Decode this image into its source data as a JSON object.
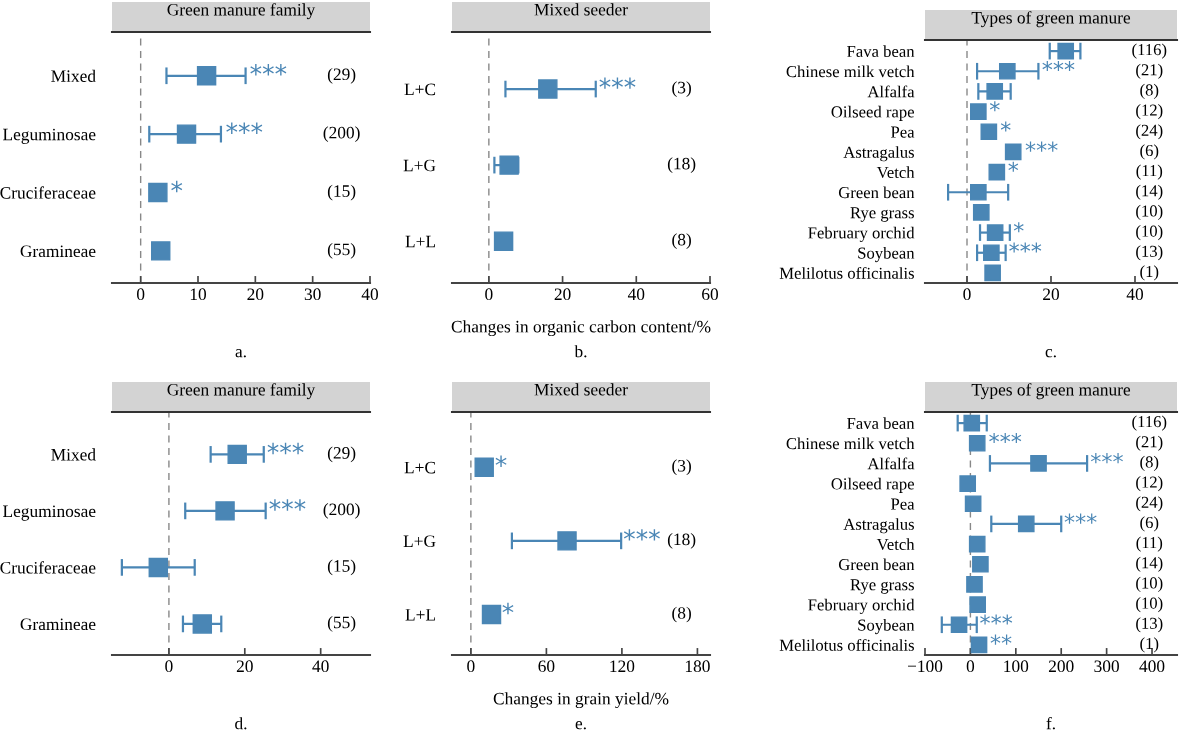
{
  "chart_data": [
    {
      "type": "scatter",
      "orientation": "horizontal",
      "marker": "square",
      "color": "#4a86b5",
      "title": "Green manure family",
      "categories": [
        "Mixed",
        "Leguminosae",
        "Cruciferaceae",
        "Gramineae"
      ],
      "values": [
        11.5,
        8,
        3,
        3.5
      ],
      "errors": [
        [
          4.5,
          18.3
        ],
        [
          1.5,
          14
        ],
        null,
        null
      ],
      "xlim": [
        -5,
        40
      ],
      "xticks": [
        0,
        10,
        20,
        30,
        40
      ],
      "ref_lines": [
        {
          "axis": "x",
          "value": 0,
          "line_style": "dashed",
          "color": "#888888"
        }
      ],
      "annotations": [
        {
          "text": "***",
          "x": 19,
          "y": "Mixed"
        },
        {
          "text": "***",
          "x": 14.8,
          "y": "Leguminosae"
        },
        {
          "text": "*",
          "x": 5.2,
          "y": "Cruciferaceae"
        },
        "(29)",
        "(200)",
        "(15)",
        "(55)",
        "a."
      ]
    },
    {
      "type": "scatter",
      "orientation": "horizontal",
      "marker": "square",
      "color": "#4a86b5",
      "title": "Mixed seeder",
      "xlabel": "Changes in organic carbon content/%",
      "categories": [
        "L+C",
        "L+G",
        "L+L"
      ],
      "values": [
        16,
        5.5,
        4
      ],
      "errors": [
        [
          4.5,
          29
        ],
        [
          1.5,
          8
        ],
        null
      ],
      "xlim": [
        -10,
        60
      ],
      "xticks": [
        0,
        20,
        40,
        60
      ],
      "ref_lines": [
        {
          "axis": "x",
          "value": 0,
          "line_style": "dashed",
          "color": "#888888"
        }
      ],
      "annotations": [
        {
          "text": "***",
          "x": 29.8,
          "y": "L+C"
        },
        "(3)",
        "(18)",
        "(8)",
        "b."
      ]
    },
    {
      "type": "scatter",
      "orientation": "horizontal",
      "marker": "square",
      "color": "#4a86b5",
      "title": "Types of green manure",
      "categories": [
        "Fava bean",
        "Chinese milk vetch",
        "Alfalfa",
        "Oilseed rape",
        "Pea",
        "Astragalus",
        "Vetch",
        "Green bean",
        "Rye grass",
        "February orchid",
        "Soybean",
        "Melilotus officinalis"
      ],
      "values": [
        23.5,
        9.6,
        6.6,
        2.7,
        5.2,
        11,
        7.1,
        2.7,
        3.4,
        6.7,
        5.8,
        6.1
      ],
      "errors": [
        [
          19.7,
          27
        ],
        [
          2.4,
          17
        ],
        [
          2.7,
          10.4
        ],
        null,
        null,
        null,
        null,
        [
          -4.5,
          9.8
        ],
        null,
        [
          3.1,
          10.2
        ],
        [
          2.4,
          9.2
        ],
        null
      ],
      "xlim": [
        -10,
        50
      ],
      "xticks": [
        0,
        20,
        40
      ],
      "ref_lines": [
        {
          "axis": "x",
          "value": 0,
          "line_style": "dashed",
          "color": "#888888"
        }
      ],
      "annotations": [
        {
          "text": "***",
          "x": 17.8,
          "y": "Chinese milk vetch"
        },
        {
          "text": "*",
          "x": 5.3,
          "y": "Oilseed rape"
        },
        {
          "text": "*",
          "x": 7.9,
          "y": "Pea"
        },
        {
          "text": "***",
          "x": 13.8,
          "y": "Astragalus"
        },
        {
          "text": "*",
          "x": 9.7,
          "y": "Vetch"
        },
        {
          "text": "*",
          "x": 11,
          "y": "February orchid"
        },
        {
          "text": "***",
          "x": 9.9,
          "y": "Soybean"
        },
        "(116)",
        "(21)",
        "(8)",
        "(12)",
        "(24)",
        "(6)",
        "(11)",
        "(14)",
        "(10)",
        "(10)",
        "(13)",
        "(1)",
        "c."
      ]
    },
    {
      "type": "scatter",
      "orientation": "horizontal",
      "marker": "square",
      "color": "#4a86b5",
      "title": "Green manure family",
      "categories": [
        "Mixed",
        "Leguminosae",
        "Cruciferaceae",
        "Gramineae"
      ],
      "values": [
        18,
        14.8,
        -2.8,
        8.8
      ],
      "errors": [
        [
          11,
          25
        ],
        [
          4.3,
          25.5
        ],
        [
          -12.4,
          6.8
        ],
        [
          3.7,
          13.8
        ]
      ],
      "xlim": [
        -15,
        53
      ],
      "xticks": [
        0,
        20,
        40
      ],
      "ref_lines": [
        {
          "axis": "x",
          "value": 0,
          "line_style": "dashed",
          "color": "#888888"
        }
      ],
      "annotations": [
        {
          "text": "***",
          "x": 25.8,
          "y": "Mixed"
        },
        {
          "text": "***",
          "x": 26.3,
          "y": "Leguminosae"
        },
        "(29)",
        "(200)",
        "(15)",
        "(55)",
        "d."
      ]
    },
    {
      "type": "scatter",
      "orientation": "horizontal",
      "marker": "square",
      "color": "#4a86b5",
      "title": "Mixed seeder",
      "xlabel": "Changes in grain yield/%",
      "categories": [
        "L+C",
        "L+G",
        "L+L"
      ],
      "values": [
        10.6,
        76.4,
        16.4
      ],
      "errors": [
        null,
        [
          32.6,
          119.4
        ],
        null
      ],
      "xlim": [
        -15,
        190
      ],
      "xticks": [
        0,
        60,
        120,
        180
      ],
      "ref_lines": [
        {
          "axis": "x",
          "value": 0,
          "line_style": "dashed",
          "color": "#888888"
        }
      ],
      "annotations": [
        {
          "text": "*",
          "x": 19,
          "y": "L+C"
        },
        {
          "text": "***",
          "x": 121,
          "y": "L+G"
        },
        {
          "text": "*",
          "x": 24.5,
          "y": "L+L"
        },
        "(3)",
        "(18)",
        "(8)",
        "e."
      ]
    },
    {
      "type": "scatter",
      "orientation": "horizontal",
      "marker": "square",
      "color": "#4a86b5",
      "title": "Types of green manure",
      "categories": [
        "Fava bean",
        "Chinese milk vetch",
        "Alfalfa",
        "Oilseed rape",
        "Pea",
        "Astragalus",
        "Vetch",
        "Green bean",
        "Rye grass",
        "February orchid",
        "Soybean",
        "Melilotus officinalis"
      ],
      "values": [
        3,
        15,
        150,
        -6,
        6,
        123,
        15,
        22,
        9,
        16,
        -25,
        19
      ],
      "errors": [
        [
          -28,
          36
        ],
        null,
        [
          43,
          257
        ],
        null,
        null,
        [
          46,
          200
        ],
        null,
        null,
        null,
        null,
        [
          -63,
          14
        ],
        null
      ],
      "xlim": [
        -100,
        455
      ],
      "xticks": [
        {
          "value": -100,
          "label": "−100"
        },
        0,
        100,
        200,
        300,
        400
      ],
      "ref_lines": [
        {
          "axis": "x",
          "value": 0,
          "line_style": "dashed",
          "color": "#888888"
        }
      ],
      "annotations": [
        {
          "text": "***",
          "x": 40,
          "y": "Chinese milk vetch"
        },
        {
          "text": "***",
          "x": 264,
          "y": "Alfalfa"
        },
        {
          "text": "***",
          "x": 206,
          "y": "Astragalus"
        },
        {
          "text": "***",
          "x": 20,
          "y": "Soybean"
        },
        {
          "text": "**",
          "x": 43,
          "y": "Melilotus officinalis"
        },
        "(116)",
        "(21)",
        "(8)",
        "(12)",
        "(24)",
        "(6)",
        "(11)",
        "(14)",
        "(10)",
        "(10)",
        "(13)",
        "(1)",
        "f."
      ]
    }
  ]
}
